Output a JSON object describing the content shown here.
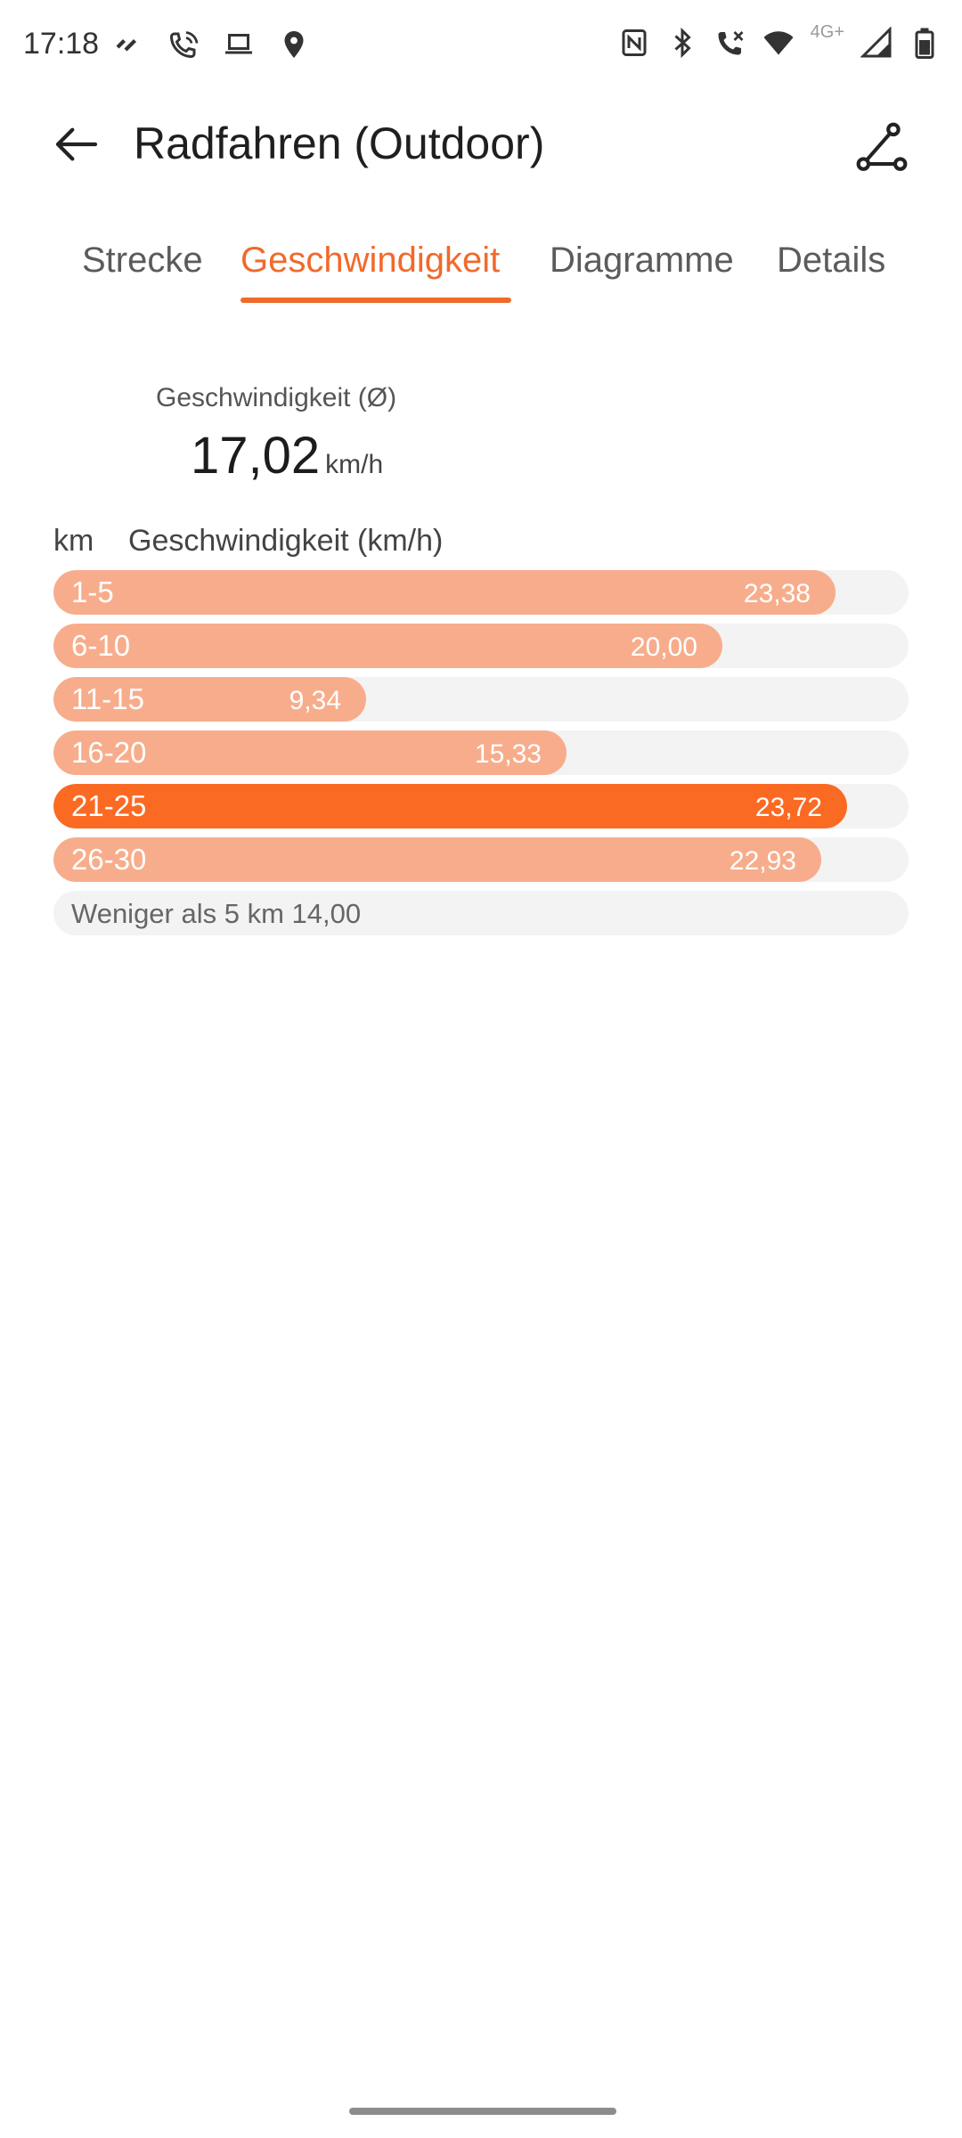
{
  "status_bar": {
    "time": "17:18",
    "network_label": "4G+",
    "left_icons": [
      "double-check-icon",
      "wifi-call-icon",
      "laptop-icon",
      "location-pin-icon"
    ],
    "right_icons": [
      "nfc-icon",
      "bluetooth-icon",
      "volte-call-icon",
      "wifi-icon",
      "signal-icon",
      "battery-icon"
    ]
  },
  "app_bar": {
    "title": "Radfahren (Outdoor)",
    "back_icon": "back-arrow-icon",
    "action_icon": "route-icon"
  },
  "tabs": [
    {
      "label": "Strecke",
      "active": false
    },
    {
      "label": "Geschwindigkeit",
      "active": true
    },
    {
      "label": "Diagramme",
      "active": false
    },
    {
      "label": "Details",
      "active": false
    }
  ],
  "colors": {
    "accent": "#f06a2b",
    "bar": "#f7ad8c",
    "bar_best": "#fb6a23",
    "track": "#f3f3f3"
  },
  "summary": {
    "label": "Geschwindigkeit (Ø)",
    "value": "17,02",
    "unit": "km/h"
  },
  "speed_table": {
    "col_km": "km",
    "col_speed": "Geschwindigkeit (km/h)",
    "max_scale": 25.55,
    "rows": [
      {
        "km": "1-5",
        "speed": "23,38",
        "speed_num": 23.38,
        "best": false
      },
      {
        "km": "6-10",
        "speed": "20,00",
        "speed_num": 20.0,
        "best": false
      },
      {
        "km": "11-15",
        "speed": "9,34",
        "speed_num": 9.34,
        "best": false
      },
      {
        "km": "16-20",
        "speed": "15,33",
        "speed_num": 15.33,
        "best": false
      },
      {
        "km": "21-25",
        "speed": "23,72",
        "speed_num": 23.72,
        "best": true
      },
      {
        "km": "26-30",
        "speed": "22,93",
        "speed_num": 22.93,
        "best": false
      }
    ],
    "remainder": "Weniger als 5 km 14,00"
  }
}
